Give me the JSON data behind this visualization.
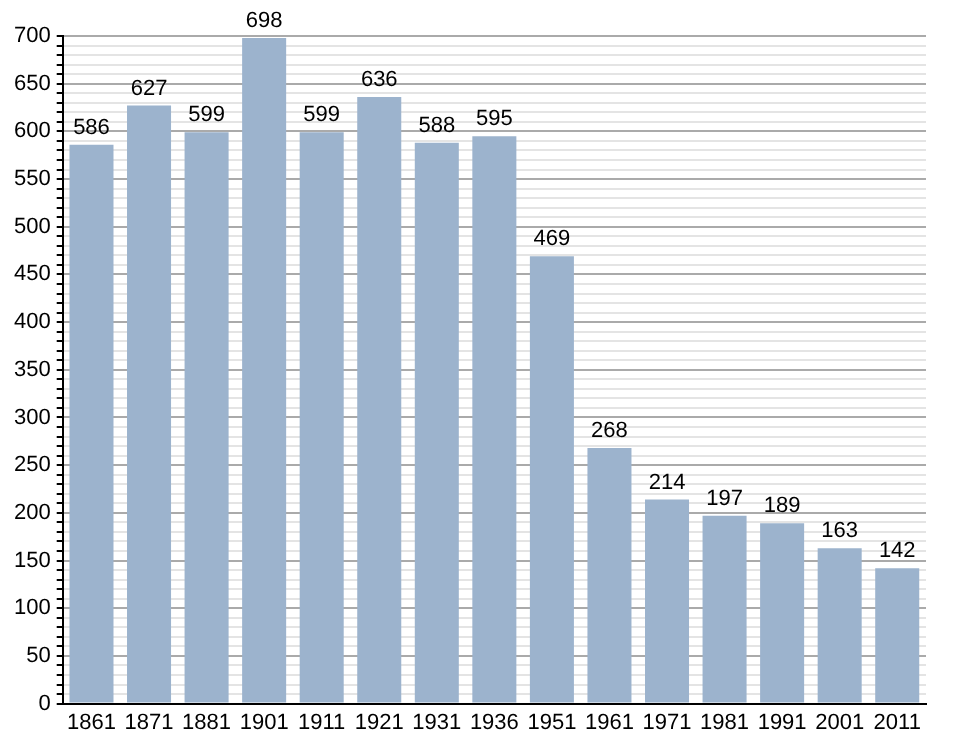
{
  "chart_data": {
    "type": "bar",
    "categories": [
      "1861",
      "1871",
      "1881",
      "1901",
      "1911",
      "1921",
      "1931",
      "1936",
      "1951",
      "1961",
      "1971",
      "1981",
      "1991",
      "2001",
      "2011"
    ],
    "values": [
      586,
      627,
      599,
      698,
      599,
      636,
      588,
      595,
      469,
      268,
      214,
      197,
      189,
      163,
      142
    ],
    "color": "#9cb3cd",
    "data_labels": true,
    "grid": "y",
    "ylim": [
      0,
      700
    ],
    "yticks": [
      0,
      {
        "value": 10,
        "label": null
      },
      {
        "value": 20,
        "label": null
      },
      {
        "value": 30,
        "label": null
      },
      {
        "value": 40,
        "label": null
      },
      50,
      {
        "value": 60,
        "label": null
      },
      {
        "value": 70,
        "label": null
      },
      {
        "value": 80,
        "label": null
      },
      {
        "value": 90,
        "label": null
      },
      100,
      {
        "value": 110,
        "label": null
      },
      {
        "value": 120,
        "label": null
      },
      {
        "value": 130,
        "label": null
      },
      {
        "value": 140,
        "label": null
      },
      150,
      {
        "value": 160,
        "label": null
      },
      {
        "value": 170,
        "label": null
      },
      {
        "value": 180,
        "label": null
      },
      {
        "value": 190,
        "label": null
      },
      200,
      {
        "value": 210,
        "label": null
      },
      {
        "value": 220,
        "label": null
      },
      {
        "value": 230,
        "label": null
      },
      {
        "value": 240,
        "label": null
      },
      250,
      {
        "value": 260,
        "label": null
      },
      {
        "value": 270,
        "label": null
      },
      {
        "value": 280,
        "label": null
      },
      {
        "value": 290,
        "label": null
      },
      300,
      {
        "value": 310,
        "label": null
      },
      {
        "value": 320,
        "label": null
      },
      {
        "value": 330,
        "label": null
      },
      {
        "value": 340,
        "label": null
      },
      350,
      {
        "value": 360,
        "label": null
      },
      {
        "value": 370,
        "label": null
      },
      {
        "value": 380,
        "label": null
      },
      {
        "value": 390,
        "label": null
      },
      400,
      {
        "value": 410,
        "label": null
      },
      {
        "value": 420,
        "label": null
      },
      {
        "value": 430,
        "label": null
      },
      {
        "value": 440,
        "label": null
      },
      450,
      {
        "value": 460,
        "label": null
      },
      {
        "value": 470,
        "label": null
      },
      {
        "value": 480,
        "label": null
      },
      {
        "value": 490,
        "label": null
      },
      500,
      {
        "value": 510,
        "label": null
      },
      {
        "value": 520,
        "label": null
      },
      {
        "value": 530,
        "label": null
      },
      {
        "value": 540,
        "label": null
      },
      550,
      {
        "value": 560,
        "label": null
      },
      {
        "value": 570,
        "label": null
      },
      {
        "value": 580,
        "label": null
      },
      {
        "value": 590,
        "label": null
      },
      600,
      {
        "value": 610,
        "label": null
      },
      {
        "value": 620,
        "label": null
      },
      {
        "value": 630,
        "label": null
      },
      {
        "value": 640,
        "label": null
      },
      650,
      {
        "value": 660,
        "label": null
      },
      {
        "value": 670,
        "label": null
      },
      {
        "value": 680,
        "label": null
      },
      {
        "value": 690,
        "label": null
      },
      700
    ]
  }
}
